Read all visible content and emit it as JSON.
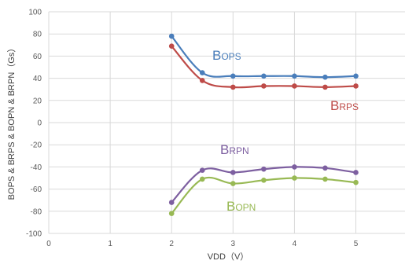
{
  "chart_data": {
    "type": "line",
    "xlabel": "VDD（V）",
    "ylabel": "BOPS & BRPS & BOPN & BRPN（Gs）",
    "xlim": [
      0,
      5.8
    ],
    "ylim": [
      -100,
      100
    ],
    "x_ticks": [
      "0",
      "1",
      "2",
      "3",
      "4",
      "5"
    ],
    "y_ticks": [
      "100",
      "80",
      "60",
      "40",
      "20",
      "0",
      "-20",
      "-40",
      "-60",
      "-80",
      "-100"
    ],
    "grid": true,
    "series": [
      {
        "name": "BOPS",
        "label_main": "B",
        "label_sub": "OPS",
        "color": "#4a7ebb",
        "x": [
          2,
          2.5,
          3,
          3.5,
          4,
          4.5,
          5
        ],
        "values": [
          78,
          45,
          42,
          42,
          42,
          41,
          42
        ]
      },
      {
        "name": "BRPS",
        "label_main": "B",
        "label_sub": "RPS",
        "color": "#be4b48",
        "x": [
          2,
          2.5,
          3,
          3.5,
          4,
          4.5,
          5
        ],
        "values": [
          69,
          38,
          32,
          33,
          33,
          32,
          33
        ]
      },
      {
        "name": "BRPN",
        "label_main": "B",
        "label_sub": "RPN",
        "color": "#7d5fa0",
        "x": [
          2,
          2.5,
          3,
          3.5,
          4,
          4.5,
          5
        ],
        "values": [
          -72,
          -43,
          -45,
          -42,
          -40,
          -41,
          -45
        ]
      },
      {
        "name": "BOPN",
        "label_main": "B",
        "label_sub": "OPN",
        "color": "#98b954",
        "x": [
          2,
          2.5,
          3,
          3.5,
          4,
          4.5,
          5
        ],
        "values": [
          -82,
          -51,
          -55,
          -52,
          -50,
          -51,
          -54
        ]
      }
    ]
  }
}
